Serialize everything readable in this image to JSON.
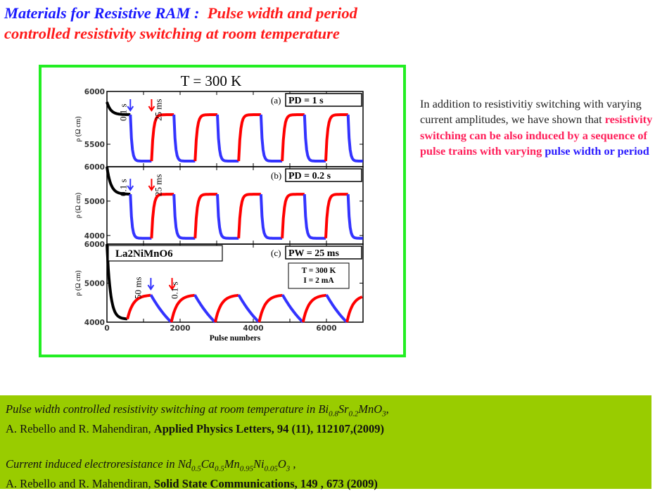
{
  "title": {
    "part1": "Materials for  Resistive RAM :",
    "part2": "Pulse width and period",
    "line2": "controlled resistivity switching at room temperature"
  },
  "description": {
    "plain": "In addition to resistivitiy switching with varying current amplitudes, we have shown that ",
    "highlight": "resistivity switching can be also induced by a sequence of pulse trains with varying",
    "blue": "pulse width or period"
  },
  "references": [
    {
      "title_prefix": "Pulse width controlled resistivity switching at room temperature in ",
      "formula": [
        [
          "Bi",
          "0.8"
        ],
        [
          "Sr",
          "0.2"
        ],
        [
          "MnO",
          "3"
        ]
      ],
      "title_suffix": ",",
      "authors": "A. Rebello and R. Mahendiran, ",
      "journal": "Applied Physics Letters, 94 (11), 112107,(2009)"
    },
    {
      "title_prefix": "Current induced electroresistance in ",
      "formula": [
        [
          "Nd",
          "0.5"
        ],
        [
          "Ca",
          "0.5"
        ],
        [
          "Mn",
          "0.95"
        ],
        [
          "Ni",
          "0.05"
        ],
        [
          "O",
          "3"
        ]
      ],
      "title_suffix": " ,",
      "authors": "A. Rebello and R. Mahendiran, ",
      "journal": "Solid State Communications, 149 , 673 (2009)"
    }
  ],
  "colors": {
    "red": "#ff0000",
    "blue": "#3333ff",
    "black": "#000000",
    "frame": "#22ee22",
    "refs_bg": "#99cc00"
  },
  "chart_data": {
    "type": "line",
    "figure_title": "T = 300 K",
    "xlabel": "Pulse numbers",
    "ylabel": "ρ (Ω cm)",
    "xlim": [
      0,
      7000
    ],
    "xticks": [
      0,
      2000,
      4000,
      6000
    ],
    "xtick_labels": [
      "0",
      "2000",
      "4000",
      "6000"
    ],
    "panels": [
      {
        "id": "a",
        "label": "(a)",
        "box_text": "PD  = 1 s",
        "ylim": [
          5287,
          6000
        ],
        "yticks": [
          5500,
          6000
        ],
        "ytick_labels": [
          "5500",
          "6000"
        ],
        "black": {
          "x": [
            0,
            640
          ],
          "start": 5900,
          "end": 5780
        },
        "high": 5780,
        "low": 5340,
        "first_drop": 640,
        "drop_width": 580,
        "period": 1190,
        "shape": "square",
        "annotations": [
          {
            "text": "0.1 s",
            "arrow": "blue",
            "x": 640
          },
          {
            "text": "25 ms",
            "arrow": "red",
            "x": 1220
          }
        ]
      },
      {
        "id": "b",
        "label": "(b)",
        "box_text": "PD  = 0.2 s",
        "ylim": [
          3750,
          6000
        ],
        "yticks": [
          4000,
          5000,
          6000
        ],
        "ytick_labels": [
          "4000",
          "5000",
          "6000"
        ],
        "black": {
          "x": [
            0,
            640
          ],
          "start": 6000,
          "end": 5200
        },
        "high": 5200,
        "low": 3920,
        "first_drop": 640,
        "drop_width": 580,
        "period": 1190,
        "shape": "square",
        "annotations": [
          {
            "text": "0.1 s",
            "arrow": "blue",
            "x": 640
          },
          {
            "text": "25 ms",
            "arrow": "red",
            "x": 1220
          }
        ]
      },
      {
        "id": "c",
        "label": "(c)",
        "box_text": "PW = 25 ms",
        "material": "La2NiMnO6",
        "conditions": [
          "T = 300 K",
          "I = 2 mA"
        ],
        "ylim": [
          4000,
          6000
        ],
        "yticks": [
          4000,
          5000,
          6000
        ],
        "ytick_labels": [
          "4000",
          "5000",
          "6000"
        ],
        "black": {
          "x": [
            0,
            560
          ],
          "start": 6000,
          "end": 4080
        },
        "high": 4700,
        "low": 4000,
        "first_rise": 560,
        "rise_width": 640,
        "period": 1200,
        "shape": "sawtooth",
        "annotations": [
          {
            "text": "50 ms",
            "arrow": "blue",
            "x": 1200
          },
          {
            "text": "0.1 s",
            "arrow": "red",
            "x": 1780
          }
        ]
      }
    ]
  }
}
